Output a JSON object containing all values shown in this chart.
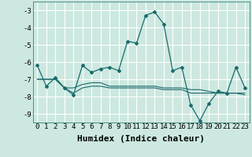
{
  "xlabel": "Humidex (Indice chaleur)",
  "x": [
    0,
    1,
    2,
    3,
    4,
    5,
    6,
    7,
    8,
    9,
    10,
    11,
    12,
    13,
    14,
    15,
    16,
    17,
    18,
    19,
    20,
    21,
    22,
    23
  ],
  "line1": [
    -6.2,
    -7.4,
    -6.9,
    -7.5,
    -7.9,
    -6.2,
    -6.6,
    -6.4,
    -6.3,
    -6.5,
    -4.8,
    -4.9,
    -3.3,
    -3.1,
    -3.8,
    -6.5,
    -6.3,
    -8.5,
    -9.4,
    -8.4,
    -7.7,
    -7.8,
    -6.3,
    -7.5
  ],
  "line2": [
    -7.0,
    -7.0,
    -7.0,
    -7.5,
    -7.5,
    -7.3,
    -7.2,
    -7.2,
    -7.4,
    -7.4,
    -7.4,
    -7.4,
    -7.4,
    -7.4,
    -7.5,
    -7.5,
    -7.5,
    -7.6,
    -7.6,
    -7.7,
    -7.8,
    -7.8,
    -7.8,
    -7.8
  ],
  "line3": [
    -7.0,
    -7.0,
    -7.0,
    -7.5,
    -7.8,
    -7.5,
    -7.4,
    -7.4,
    -7.5,
    -7.5,
    -7.5,
    -7.5,
    -7.5,
    -7.5,
    -7.6,
    -7.6,
    -7.6,
    -7.8,
    -7.8,
    -7.8,
    -7.8,
    -7.8,
    -7.8,
    -7.9
  ],
  "ylim": [
    -9.5,
    -2.5
  ],
  "xlim": [
    -0.5,
    23.5
  ],
  "yticks": [
    -9,
    -8,
    -7,
    -6,
    -5,
    -4,
    -3
  ],
  "xticks": [
    0,
    1,
    2,
    3,
    4,
    5,
    6,
    7,
    8,
    9,
    10,
    11,
    12,
    13,
    14,
    15,
    16,
    17,
    18,
    19,
    20,
    21,
    22,
    23
  ],
  "bg_color": "#cce8e0",
  "grid_color": "#ffffff",
  "line_color": "#1a6b6b",
  "tick_fontsize": 6.5,
  "xlabel_fontsize": 8
}
